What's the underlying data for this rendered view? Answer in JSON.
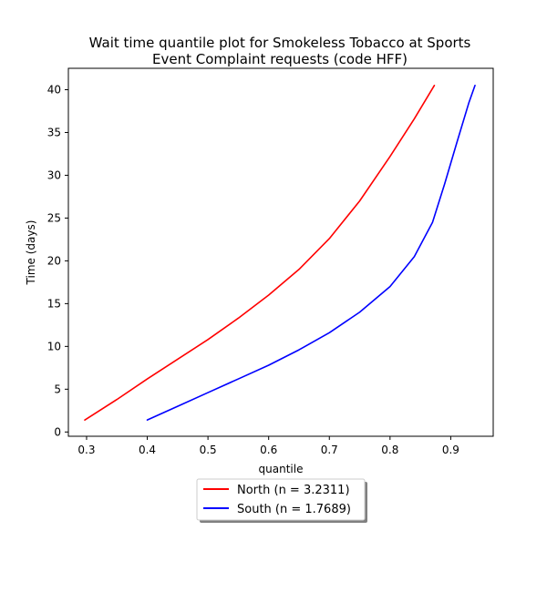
{
  "chart_data": {
    "type": "line",
    "title_lines": [
      "Wait time quantile plot for Smokeless Tobacco at Sports",
      "Event Complaint  requests (code HFF)"
    ],
    "xlabel": "quantile",
    "ylabel": "Time (days)",
    "xlim": [
      0.27,
      0.97
    ],
    "ylim": [
      -0.5,
      42.5
    ],
    "xticks": [
      0.3,
      0.4,
      0.5,
      0.6,
      0.7,
      0.8,
      0.9
    ],
    "xtick_labels": [
      "0.3",
      "0.4",
      "0.5",
      "0.6",
      "0.7",
      "0.8",
      "0.9"
    ],
    "yticks": [
      0,
      5,
      10,
      15,
      20,
      25,
      30,
      35,
      40
    ],
    "ytick_labels": [
      "0",
      "5",
      "10",
      "15",
      "20",
      "25",
      "30",
      "35",
      "40"
    ],
    "grid": false,
    "legend_position": "below",
    "series": [
      {
        "name": "North (n = 3.2311)",
        "color": "#ff0000",
        "points": [
          [
            0.297,
            1.4
          ],
          [
            0.35,
            3.8
          ],
          [
            0.4,
            6.2
          ],
          [
            0.45,
            8.5
          ],
          [
            0.5,
            10.8
          ],
          [
            0.55,
            13.3
          ],
          [
            0.6,
            16.0
          ],
          [
            0.65,
            19.0
          ],
          [
            0.7,
            22.6
          ],
          [
            0.75,
            27.0
          ],
          [
            0.8,
            32.2
          ],
          [
            0.84,
            36.6
          ],
          [
            0.873,
            40.5
          ]
        ]
      },
      {
        "name": "South (n = 1.7689)",
        "color": "#0000ff",
        "points": [
          [
            0.4,
            1.4
          ],
          [
            0.45,
            3.0
          ],
          [
            0.5,
            4.6
          ],
          [
            0.55,
            6.2
          ],
          [
            0.6,
            7.8
          ],
          [
            0.65,
            9.6
          ],
          [
            0.7,
            11.6
          ],
          [
            0.75,
            14.0
          ],
          [
            0.8,
            17.0
          ],
          [
            0.84,
            20.5
          ],
          [
            0.87,
            24.5
          ],
          [
            0.89,
            29.0
          ],
          [
            0.91,
            33.8
          ],
          [
            0.93,
            38.5
          ],
          [
            0.94,
            40.5
          ]
        ]
      }
    ]
  }
}
